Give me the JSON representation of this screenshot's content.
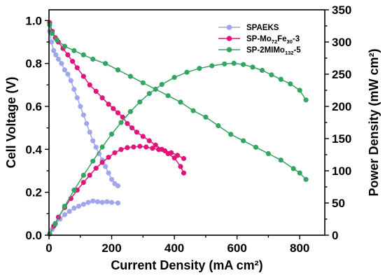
{
  "chart_data": {
    "type": "line",
    "xlabel": "Current Density (mA cm²)",
    "ylabel_left": "Cell Voltage (V)",
    "ylabel_right": "Power Density (mW cm²)",
    "xlim": [
      0,
      880
    ],
    "ylim_left": [
      0,
      1.05
    ],
    "ylim_right": [
      0,
      350
    ],
    "x_ticks": [
      "0",
      "200",
      "400",
      "600",
      "800"
    ],
    "x_tick_values": [
      0,
      200,
      400,
      600,
      800
    ],
    "y_left_ticks": [
      "0.0",
      "0.2",
      "0.4",
      "0.6",
      "0.8",
      "1.0"
    ],
    "y_left_tick_values": [
      0,
      0.2,
      0.4,
      0.6,
      0.8,
      1.0
    ],
    "y_right_ticks": [
      "0",
      "50",
      "100",
      "150",
      "200",
      "250",
      "300",
      "350"
    ],
    "y_right_tick_values": [
      0,
      50,
      100,
      150,
      200,
      250,
      300,
      350
    ],
    "legend_position": "top-right",
    "legend": [
      {
        "name": "SPAEKS",
        "color": "#a1a6ec"
      },
      {
        "name": "SP-Mo72Fe30-3",
        "name_parts": [
          "SP-Mo",
          "72",
          "Fe",
          "30",
          "-3"
        ],
        "color": "#e0157a"
      },
      {
        "name": "SP-2MIMo132-5",
        "name_parts": [
          "SP-2MIMo",
          "132",
          "-5"
        ],
        "color": "#33a461"
      }
    ],
    "series": [
      {
        "name": "SPAEKS",
        "kind": "voltage",
        "axis": "left",
        "color": "#a1a6ec",
        "x": [
          2,
          8,
          15,
          22,
          30,
          40,
          50,
          60,
          70,
          80,
          90,
          100,
          110,
          120,
          130,
          140,
          150,
          160,
          170,
          180,
          190,
          200,
          210,
          220
        ],
        "y": [
          0.95,
          0.9,
          0.86,
          0.84,
          0.82,
          0.8,
          0.77,
          0.75,
          0.72,
          0.68,
          0.64,
          0.6,
          0.56,
          0.52,
          0.48,
          0.44,
          0.41,
          0.38,
          0.35,
          0.32,
          0.29,
          0.26,
          0.24,
          0.23
        ]
      },
      {
        "name": "SP-Mo72Fe30-3",
        "kind": "voltage",
        "axis": "left",
        "color": "#e0157a",
        "x": [
          2,
          10,
          20,
          30,
          45,
          60,
          75,
          90,
          110,
          130,
          150,
          170,
          190,
          205,
          220,
          235,
          250,
          265,
          280,
          300,
          320,
          340,
          360,
          380,
          400,
          420,
          430
        ],
        "y": [
          0.99,
          0.95,
          0.92,
          0.9,
          0.87,
          0.84,
          0.81,
          0.78,
          0.74,
          0.7,
          0.67,
          0.64,
          0.61,
          0.59,
          0.57,
          0.55,
          0.52,
          0.5,
          0.48,
          0.46,
          0.44,
          0.42,
          0.4,
          0.38,
          0.36,
          0.32,
          0.29
        ]
      },
      {
        "name": "SP-2MIMo132-5",
        "kind": "voltage",
        "axis": "left",
        "color": "#33a461",
        "x": [
          2,
          10,
          25,
          50,
          80,
          110,
          140,
          180,
          220,
          260,
          300,
          340,
          380,
          420,
          460,
          500,
          540,
          580,
          620,
          660,
          700,
          740,
          780,
          800,
          820
        ],
        "y": [
          0.98,
          0.94,
          0.91,
          0.88,
          0.86,
          0.84,
          0.82,
          0.8,
          0.77,
          0.74,
          0.71,
          0.68,
          0.65,
          0.62,
          0.58,
          0.55,
          0.51,
          0.47,
          0.44,
          0.41,
          0.38,
          0.35,
          0.31,
          0.29,
          0.26
        ]
      },
      {
        "name": "SPAEKS",
        "kind": "power",
        "axis": "right",
        "color": "#a1a6ec",
        "x": [
          2,
          10,
          20,
          35,
          50,
          65,
          80,
          95,
          110,
          125,
          140,
          155,
          170,
          185,
          200,
          220
        ],
        "y": [
          2,
          9,
          17,
          25,
          32,
          37,
          42,
          45,
          48,
          51,
          53,
          52,
          51,
          52,
          51,
          50
        ]
      },
      {
        "name": "SP-Mo72Fe30-3",
        "kind": "power",
        "axis": "right",
        "color": "#e0157a",
        "x": [
          2,
          15,
          30,
          50,
          70,
          90,
          110,
          130,
          150,
          170,
          190,
          210,
          230,
          250,
          270,
          290,
          310,
          330,
          350,
          370,
          390,
          410,
          430
        ],
        "y": [
          2,
          14,
          28,
          43,
          57,
          70,
          82,
          93,
          104,
          113,
          121,
          128,
          133,
          136,
          137,
          138,
          137,
          135,
          133,
          131,
          128,
          124,
          119
        ]
      },
      {
        "name": "SP-2MIMo132-5",
        "kind": "power",
        "axis": "right",
        "color": "#33a461",
        "x": [
          2,
          20,
          50,
          80,
          110,
          140,
          170,
          200,
          230,
          260,
          290,
          320,
          360,
          400,
          440,
          480,
          520,
          560,
          590,
          620,
          650,
          680,
          710,
          740,
          770,
          800,
          820
        ],
        "y": [
          2,
          18,
          45,
          70,
          93,
          115,
          137,
          157,
          175,
          192,
          207,
          220,
          234,
          245,
          253,
          259,
          263,
          266,
          267,
          265,
          261,
          256,
          249,
          242,
          235,
          225,
          210
        ]
      }
    ]
  }
}
